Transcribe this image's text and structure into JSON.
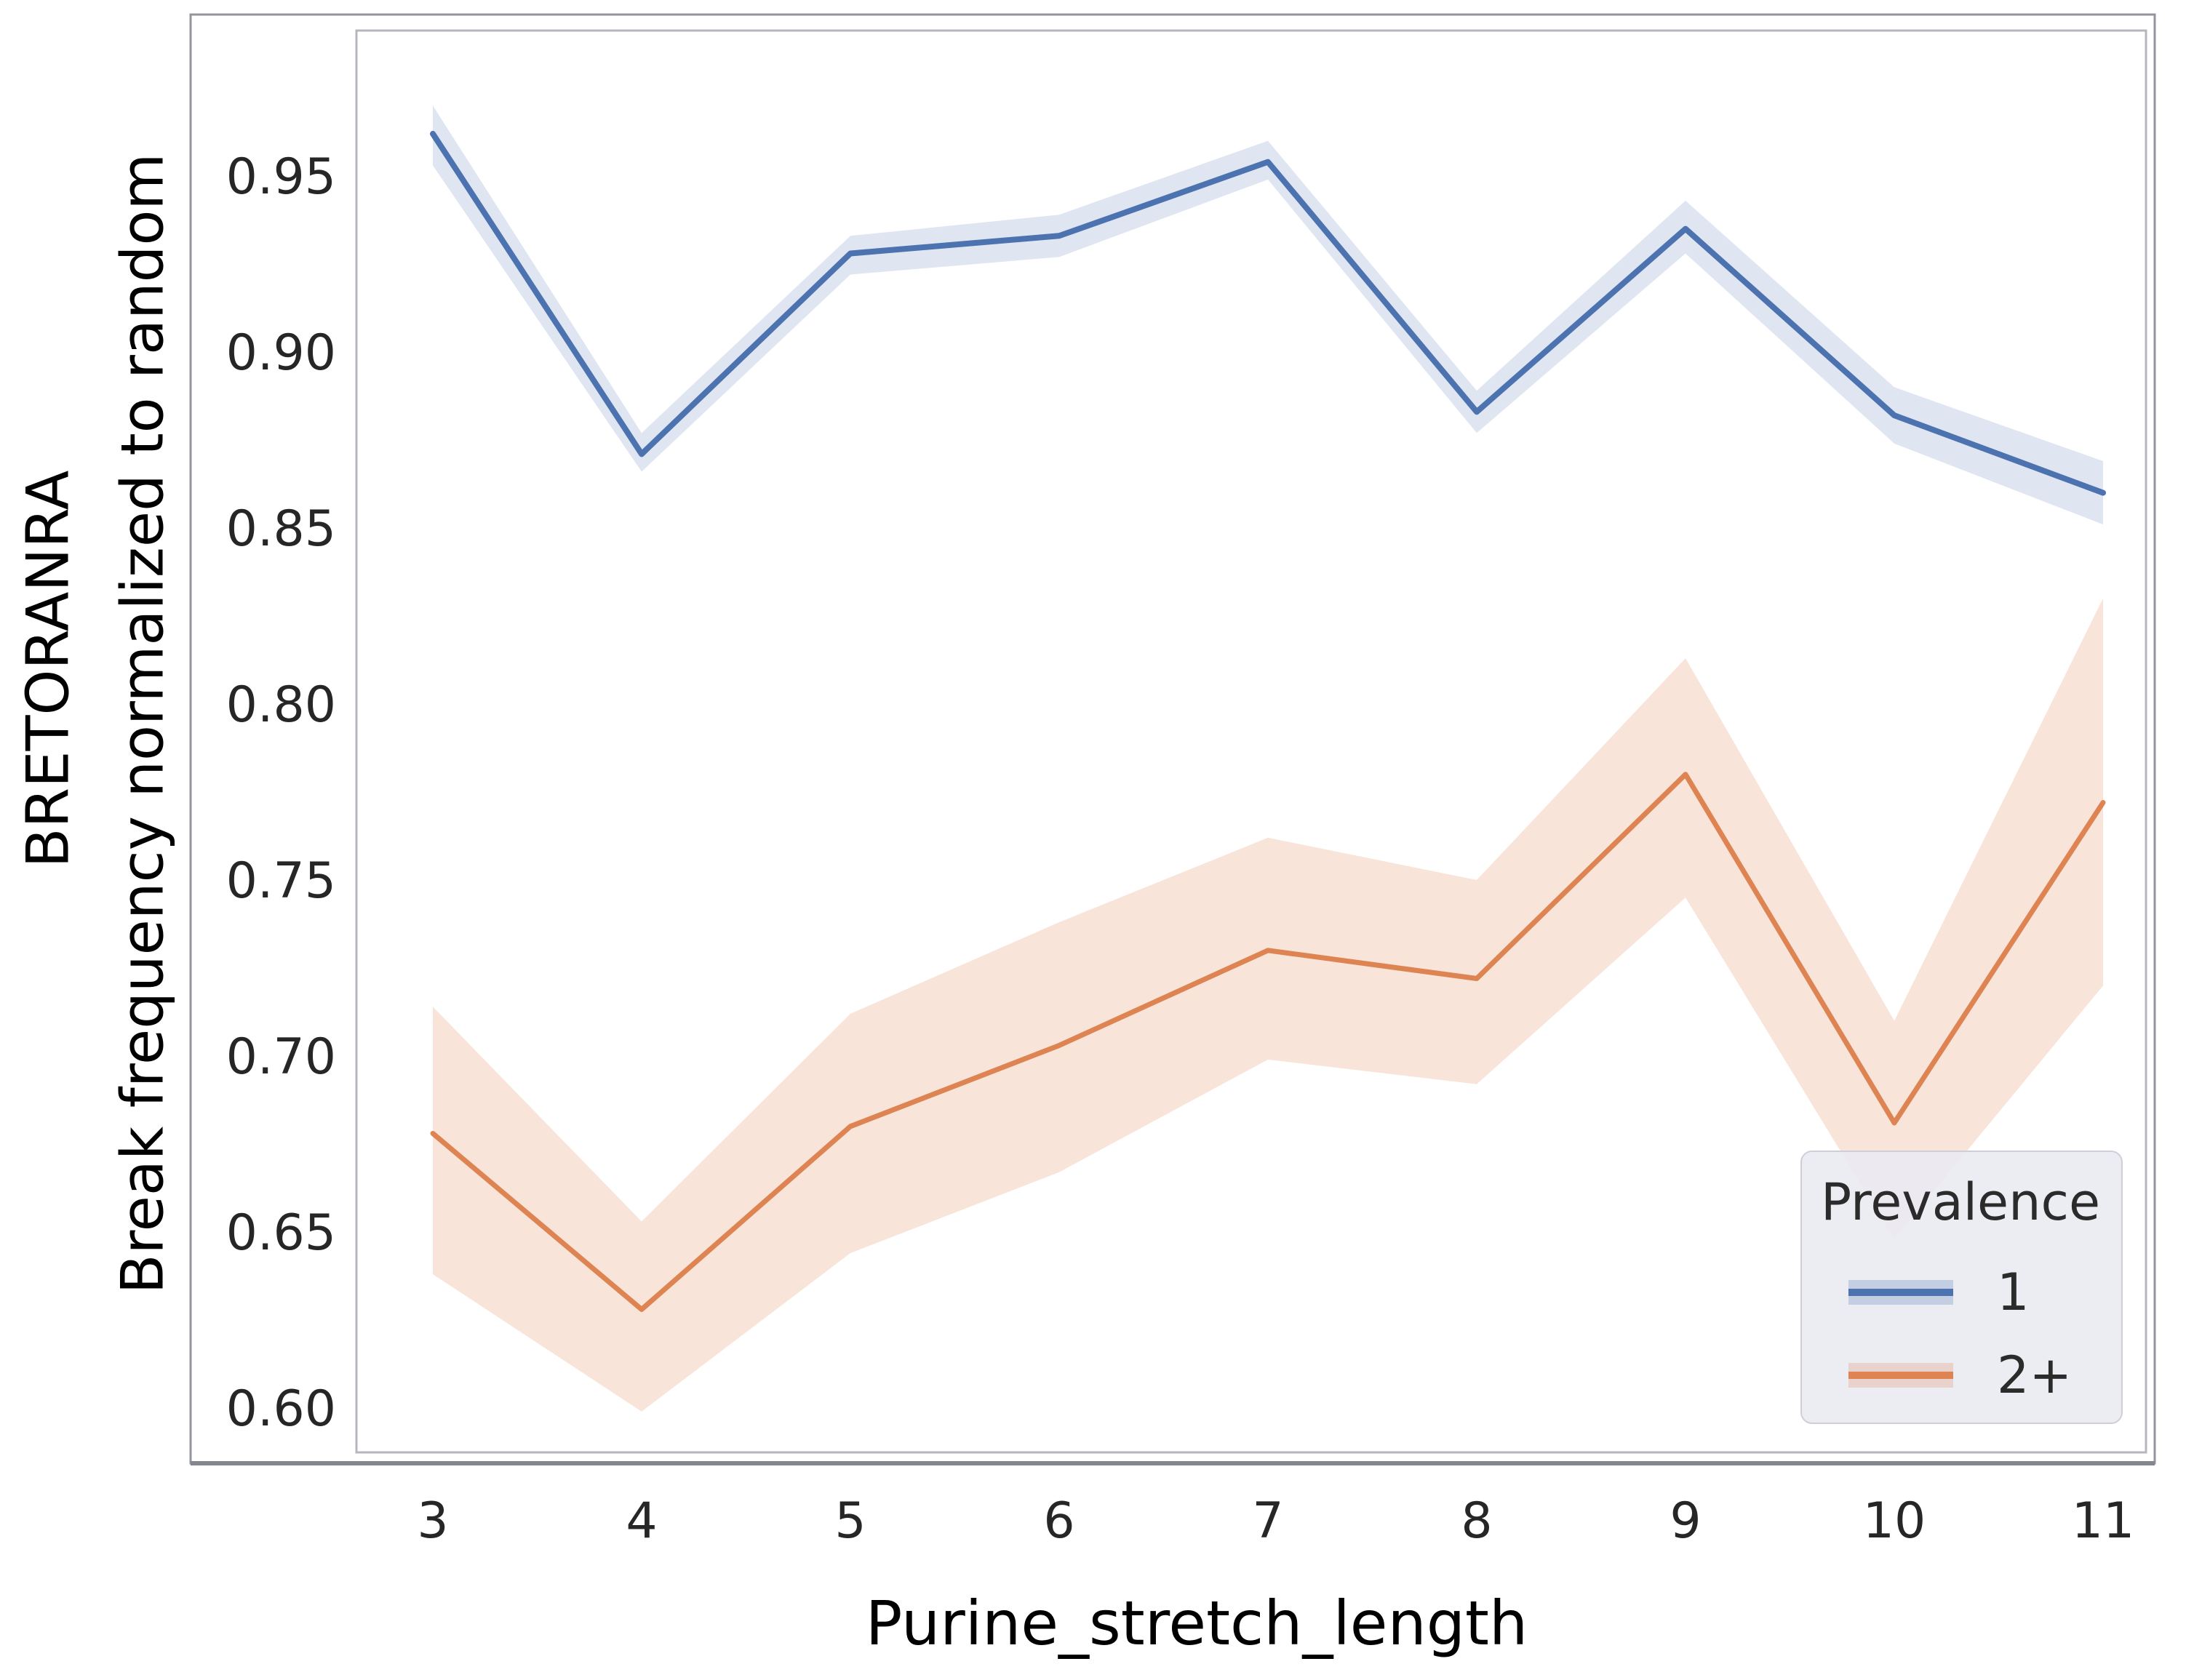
{
  "figure": {
    "background": "#ffffff",
    "ylabel_primary": "Break frequency normalized to random",
    "ylabel_secondary": "BRETORANRA",
    "xlabel": "Purine_stretch_length"
  },
  "legend": {
    "title": "Prevalence",
    "position": "lower right",
    "items": [
      {
        "label": "1",
        "color": "#4C72B0"
      },
      {
        "label": "2+",
        "color": "#DD8452"
      }
    ]
  },
  "chart_data": {
    "type": "line",
    "title": "",
    "xlabel": "Purine_stretch_length",
    "ylabel": "Break frequency normalized to random",
    "ylabel_secondary": "BRETORANRA",
    "x": [
      3,
      4,
      5,
      6,
      7,
      8,
      9,
      10,
      11
    ],
    "xtick_labels": [
      "3",
      "4",
      "5",
      "6",
      "7",
      "8",
      "9",
      "10",
      "11"
    ],
    "yticks": [
      0.6,
      0.65,
      0.7,
      0.75,
      0.8,
      0.85,
      0.9,
      0.95
    ],
    "ylim": [
      0.587,
      0.991
    ],
    "xlim": [
      2.63,
      11.2
    ],
    "grid": false,
    "legend_position": "lower right",
    "series": [
      {
        "name": "1",
        "color": "#4C72B0",
        "band_color": "rgba(76,114,176,0.18)",
        "values": [
          0.962,
          0.871,
          0.928,
          0.933,
          0.954,
          0.883,
          0.935,
          0.882,
          0.86
        ],
        "band_high": [
          0.97,
          0.877,
          0.933,
          0.939,
          0.96,
          0.889,
          0.943,
          0.89,
          0.869
        ],
        "band_low": [
          0.953,
          0.866,
          0.922,
          0.927,
          0.949,
          0.877,
          0.928,
          0.874,
          0.851
        ]
      },
      {
        "name": "2+",
        "color": "#DD8452",
        "band_color": "rgba(221,132,82,0.22)",
        "values": [
          0.678,
          0.628,
          0.68,
          0.703,
          0.73,
          0.722,
          0.78,
          0.681,
          0.772
        ],
        "band_high": [
          0.714,
          0.653,
          0.712,
          0.738,
          0.762,
          0.75,
          0.813,
          0.71,
          0.83
        ],
        "band_low": [
          0.638,
          0.599,
          0.644,
          0.667,
          0.699,
          0.692,
          0.745,
          0.648,
          0.72
        ]
      }
    ]
  },
  "colors": {
    "axes_spine": "#b6b6bf",
    "outer_frame": "#94949c",
    "outer_frame_bottom": "#84878f",
    "tick_text": "#262626",
    "legend_bg": "#eaeaf2",
    "legend_border": "#cfcfda"
  }
}
